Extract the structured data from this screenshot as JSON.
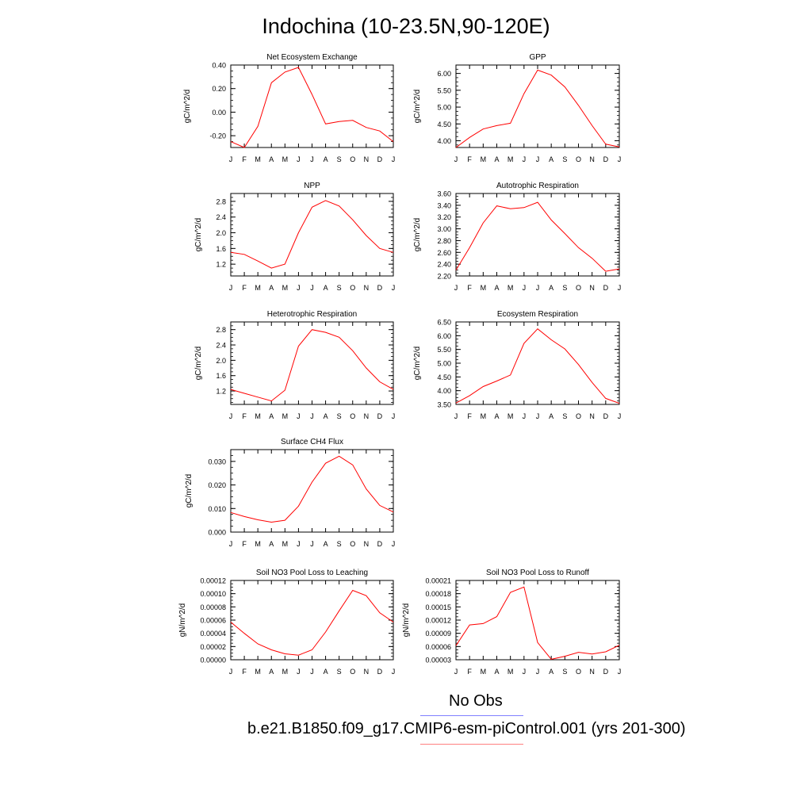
{
  "title": "Indochina (10-23.5N,90-120E)",
  "legend": {
    "obs_label": "No Obs",
    "obs_color": "#8080ff",
    "model_label": "b.e21.B1850.f09_g17.CMIP6-esm-piControl.001 (yrs 201-300)",
    "model_color": "#ff8080"
  },
  "line_color": "#ff0000",
  "chart_data": [
    {
      "type": "line",
      "title": "Net Ecosystem Exchange",
      "ylabel": "gC/m^2/d",
      "x": [
        "J",
        "F",
        "M",
        "A",
        "M",
        "J",
        "J",
        "A",
        "S",
        "O",
        "N",
        "D",
        "J"
      ],
      "ylim": [
        -0.3,
        0.4
      ],
      "yticks": [
        -0.2,
        0.0,
        0.2,
        0.4
      ],
      "ytick_labels": [
        "-0.20",
        "0.00",
        "0.20",
        "0.40"
      ],
      "series": [
        {
          "values": [
            -0.25,
            -0.3,
            -0.12,
            0.25,
            0.34,
            0.38,
            0.15,
            -0.1,
            -0.08,
            -0.07,
            -0.13,
            -0.16,
            -0.25
          ]
        }
      ]
    },
    {
      "type": "line",
      "title": "GPP",
      "ylabel": "gC/m^2/d",
      "x": [
        "J",
        "F",
        "M",
        "A",
        "M",
        "J",
        "J",
        "A",
        "S",
        "O",
        "N",
        "D",
        "J"
      ],
      "ylim": [
        3.8,
        6.25
      ],
      "yticks": [
        4.0,
        4.5,
        5.0,
        5.5,
        6.0
      ],
      "ytick_labels": [
        "4.00",
        "4.50",
        "5.00",
        "5.50",
        "6.00"
      ],
      "series": [
        {
          "values": [
            3.8,
            4.1,
            4.35,
            4.45,
            4.52,
            5.4,
            6.1,
            5.95,
            5.6,
            5.05,
            4.45,
            3.9,
            3.82
          ]
        }
      ]
    },
    {
      "type": "line",
      "title": "NPP",
      "ylabel": "gC/m^2/d",
      "x": [
        "J",
        "F",
        "M",
        "A",
        "M",
        "J",
        "J",
        "A",
        "S",
        "O",
        "N",
        "D",
        "J"
      ],
      "ylim": [
        0.9,
        3.0
      ],
      "yticks": [
        1.2,
        1.6,
        2.0,
        2.4,
        2.8
      ],
      "ytick_labels": [
        "1.2",
        "1.6",
        "2.0",
        "2.4",
        "2.8"
      ],
      "series": [
        {
          "values": [
            1.5,
            1.45,
            1.28,
            1.1,
            1.2,
            2.0,
            2.65,
            2.82,
            2.68,
            2.33,
            1.93,
            1.6,
            1.5
          ]
        }
      ]
    },
    {
      "type": "line",
      "title": "Autotrophic Respiration",
      "ylabel": "gC/m^2/d",
      "x": [
        "J",
        "F",
        "M",
        "A",
        "M",
        "J",
        "J",
        "A",
        "S",
        "O",
        "N",
        "D",
        "J"
      ],
      "ylim": [
        2.2,
        3.6
      ],
      "yticks": [
        2.2,
        2.4,
        2.6,
        2.8,
        3.0,
        3.2,
        3.4,
        3.6
      ],
      "ytick_labels": [
        "2.20",
        "2.40",
        "2.60",
        "2.80",
        "3.00",
        "3.20",
        "3.40",
        "3.60"
      ],
      "series": [
        {
          "values": [
            2.3,
            2.68,
            3.1,
            3.39,
            3.34,
            3.36,
            3.45,
            3.15,
            2.92,
            2.68,
            2.5,
            2.28,
            2.32
          ]
        }
      ]
    },
    {
      "type": "line",
      "title": "Heterotrophic Respiration",
      "ylabel": "gC/m^2/d",
      "x": [
        "J",
        "F",
        "M",
        "A",
        "M",
        "J",
        "J",
        "A",
        "S",
        "O",
        "N",
        "D",
        "J"
      ],
      "ylim": [
        0.85,
        3.0
      ],
      "yticks": [
        1.2,
        1.6,
        2.0,
        2.4,
        2.8
      ],
      "ytick_labels": [
        "1.2",
        "1.6",
        "2.0",
        "2.4",
        "2.8"
      ],
      "series": [
        {
          "values": [
            1.24,
            1.14,
            1.04,
            0.94,
            1.22,
            2.37,
            2.8,
            2.73,
            2.6,
            2.25,
            1.8,
            1.44,
            1.24
          ]
        }
      ]
    },
    {
      "type": "line",
      "title": "Ecosystem Respiration",
      "ylabel": "gC/m^2/d",
      "x": [
        "J",
        "F",
        "M",
        "A",
        "M",
        "J",
        "J",
        "A",
        "S",
        "O",
        "N",
        "D",
        "J"
      ],
      "ylim": [
        3.5,
        6.5
      ],
      "yticks": [
        3.5,
        4.0,
        4.5,
        5.0,
        5.5,
        6.0,
        6.5
      ],
      "ytick_labels": [
        "3.50",
        "4.00",
        "4.50",
        "5.00",
        "5.50",
        "6.00",
        "6.50"
      ],
      "series": [
        {
          "values": [
            3.55,
            3.82,
            4.15,
            4.35,
            4.57,
            5.72,
            6.25,
            5.85,
            5.52,
            4.95,
            4.3,
            3.72,
            3.54
          ]
        }
      ]
    },
    {
      "type": "line",
      "title": "Surface CH4 Flux",
      "ylabel": "gC/m^2/d",
      "x": [
        "J",
        "F",
        "M",
        "A",
        "M",
        "J",
        "J",
        "A",
        "S",
        "O",
        "N",
        "D",
        "J"
      ],
      "ylim": [
        0.0,
        0.035
      ],
      "yticks": [
        0.0,
        0.01,
        0.02,
        0.03
      ],
      "ytick_labels": [
        "0.000",
        "0.010",
        "0.020",
        "0.030"
      ],
      "series": [
        {
          "values": [
            0.0083,
            0.0066,
            0.0052,
            0.0042,
            0.005,
            0.011,
            0.0212,
            0.0292,
            0.0322,
            0.0285,
            0.0183,
            0.0113,
            0.0085
          ]
        }
      ]
    },
    {
      "type": "line",
      "title": "Soil NO3 Pool Loss to Leaching",
      "ylabel": "gN/m^2/d",
      "x": [
        "J",
        "F",
        "M",
        "A",
        "M",
        "J",
        "J",
        "A",
        "S",
        "O",
        "N",
        "D",
        "J"
      ],
      "ylim": [
        0.0,
        0.00012
      ],
      "yticks": [
        0.0,
        2e-05,
        4e-05,
        6e-05,
        8e-05,
        0.0001,
        0.00012
      ],
      "ytick_labels": [
        "0.00000",
        "0.00002",
        "0.00004",
        "0.00006",
        "0.00008",
        "0.00010",
        "0.00012"
      ],
      "series": [
        {
          "values": [
            5.7e-05,
            4e-05,
            2.4e-05,
            1.5e-05,
            9e-06,
            7e-06,
            1.5e-05,
            4.2e-05,
            7.4e-05,
            0.000105,
            9.7e-05,
            7.1e-05,
            5.7e-05
          ]
        }
      ]
    },
    {
      "type": "line",
      "title": "Soil NO3 Pool Loss to Runoff",
      "ylabel": "gN/m^2/d",
      "x": [
        "J",
        "F",
        "M",
        "A",
        "M",
        "J",
        "J",
        "A",
        "S",
        "O",
        "N",
        "D",
        "J"
      ],
      "ylim": [
        3e-05,
        0.00021
      ],
      "yticks": [
        3e-05,
        6e-05,
        9e-05,
        0.00012,
        0.00015,
        0.00018,
        0.00021
      ],
      "ytick_labels": [
        "0.00003",
        "0.00006",
        "0.00009",
        "0.00012",
        "0.00015",
        "0.00018",
        "0.00021"
      ],
      "series": [
        {
          "values": [
            6.2e-05,
            0.000109,
            0.000112,
            0.000128,
            0.000183,
            0.000195,
            6.9e-05,
            3.1e-05,
            3.8e-05,
            4.7e-05,
            4.3e-05,
            4.8e-05,
            6.3e-05
          ]
        }
      ]
    }
  ]
}
